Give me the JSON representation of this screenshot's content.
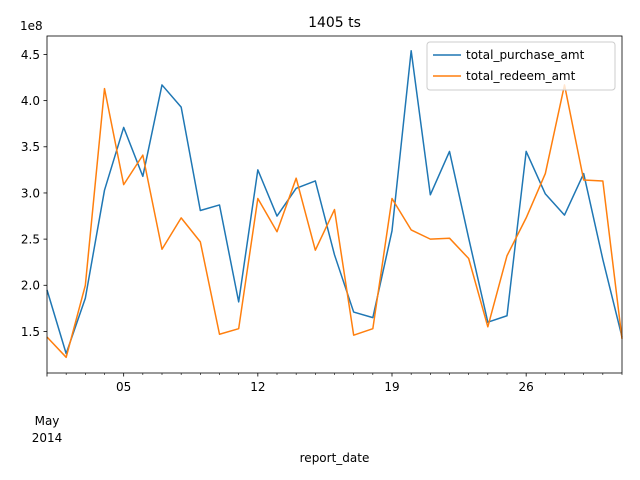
{
  "chart_data": {
    "type": "line",
    "title": "1405 ts",
    "xlabel": "report_date",
    "ylabel": "",
    "y_scale_label": "1e8",
    "x": [
      "2014-05-01",
      "2014-05-02",
      "2014-05-03",
      "2014-05-04",
      "2014-05-05",
      "2014-05-06",
      "2014-05-07",
      "2014-05-08",
      "2014-05-09",
      "2014-05-10",
      "2014-05-11",
      "2014-05-12",
      "2014-05-13",
      "2014-05-14",
      "2014-05-15",
      "2014-05-16",
      "2014-05-17",
      "2014-05-18",
      "2014-05-19",
      "2014-05-20",
      "2014-05-21",
      "2014-05-22",
      "2014-05-23",
      "2014-05-24",
      "2014-05-25",
      "2014-05-26",
      "2014-05-27",
      "2014-05-28",
      "2014-05-29",
      "2014-05-30",
      "2014-05-31"
    ],
    "series": [
      {
        "name": "total_purchase_amt",
        "color": "#1f77b4",
        "values": [
          1.95,
          1.26,
          1.86,
          3.03,
          3.71,
          3.18,
          4.17,
          3.93,
          2.81,
          2.87,
          1.82,
          3.25,
          2.75,
          3.05,
          3.13,
          2.33,
          1.71,
          1.65,
          2.59,
          4.54,
          2.98,
          3.45,
          2.51,
          1.6,
          1.67,
          3.45,
          2.99,
          2.76,
          3.21,
          2.28,
          1.44
        ]
      },
      {
        "name": "total_redeem_amt",
        "color": "#ff7f0e",
        "values": [
          1.44,
          1.22,
          2.0,
          4.13,
          3.09,
          3.41,
          2.39,
          2.73,
          2.47,
          1.47,
          1.53,
          2.94,
          2.58,
          3.16,
          2.38,
          2.82,
          1.46,
          1.53,
          2.94,
          2.6,
          2.5,
          2.51,
          2.29,
          1.55,
          2.32,
          2.73,
          3.21,
          4.17,
          3.14,
          3.13,
          1.42
        ]
      }
    ],
    "yticks": [
      "1.5",
      "2.0",
      "2.5",
      "3.0",
      "3.5",
      "4.0",
      "4.5"
    ],
    "ytick_values": [
      1.5,
      2.0,
      2.5,
      3.0,
      3.5,
      4.0,
      4.5
    ],
    "xticks_major": [
      "05",
      "12",
      "19",
      "26"
    ],
    "xtick_major_days": [
      5,
      12,
      19,
      26
    ],
    "month_label": "May",
    "year_label": "2014",
    "ylim": [
      1.05,
      4.7
    ],
    "legend": "top-right",
    "grid": false
  }
}
